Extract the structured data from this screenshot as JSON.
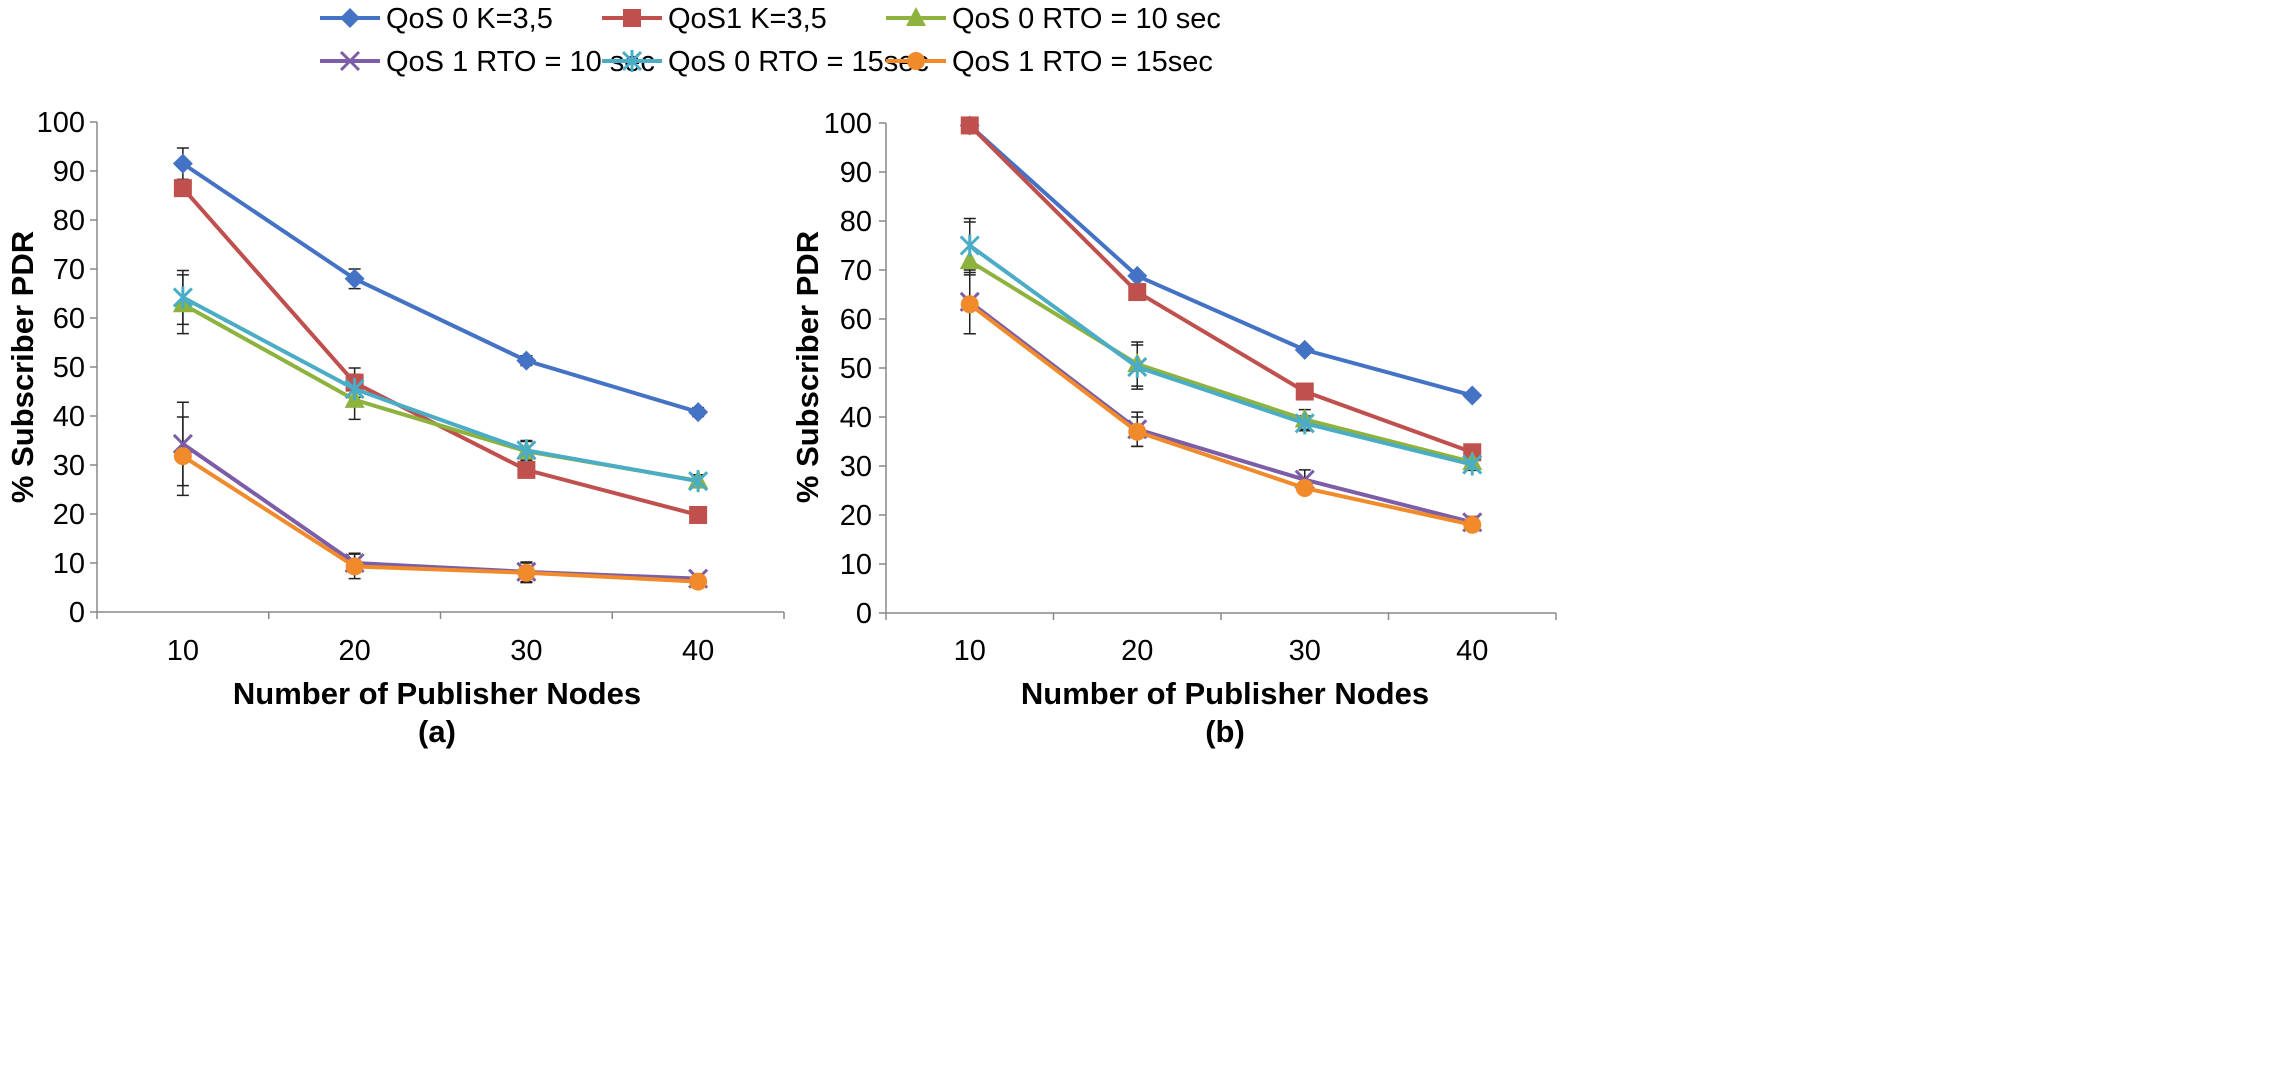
{
  "chart_data": [
    {
      "type": "line",
      "caption": "(a)",
      "xlabel": "Number of Publisher Nodes",
      "ylabel": "% Subscriber PDR",
      "categories": [
        "10",
        "20",
        "30",
        "40"
      ],
      "ylim": [
        0,
        100
      ],
      "yticks": [
        "0",
        "10",
        "20",
        "30",
        "40",
        "50",
        "60",
        "70",
        "80",
        "90",
        "100"
      ],
      "legend_position": "top",
      "series": [
        {
          "name": "QoS 0 K=3,5",
          "color": "#4472c4",
          "marker": "diamond",
          "values": [
            91.5,
            68,
            51.3,
            40.8
          ],
          "errors": [
            3.2,
            2.0,
            1.0,
            0.9
          ]
        },
        {
          "name": "QoS1 K=3,5",
          "color": "#c0504d",
          "marker": "square",
          "values": [
            86.5,
            46.8,
            29,
            19.8
          ],
          "errors": [
            0,
            3.0,
            0,
            0
          ]
        },
        {
          "name": "QoS 0 RTO = 10 sec",
          "color": "#8db33e",
          "marker": "triangle",
          "values": [
            62.8,
            43.3,
            32.8,
            26.8
          ],
          "errors": [
            6.0,
            4.0,
            2.0,
            1.2
          ]
        },
        {
          "name": "QoS 1 RTO = 10 sec",
          "color": "#7b5ea7",
          "marker": "x",
          "values": [
            34.3,
            10,
            8.2,
            6.8
          ],
          "errors": [
            8.5,
            2.0,
            2.0,
            1.0
          ]
        },
        {
          "name": "QoS 0 RTO = 15sec",
          "color": "#4bacc6",
          "marker": "star",
          "values": [
            64.2,
            45.5,
            33,
            26.7
          ],
          "errors": [
            5.5,
            3.0,
            2.0,
            1.2
          ]
        },
        {
          "name": "QoS 1 RTO = 15sec",
          "color": "#f08a2b",
          "marker": "circle",
          "values": [
            31.8,
            9.3,
            8,
            6.2
          ],
          "errors": [
            8.0,
            2.5,
            2.0,
            1.0
          ]
        }
      ]
    },
    {
      "type": "line",
      "caption": "(b)",
      "xlabel": "Number of Publisher Nodes",
      "ylabel": "% Subscriber PDR",
      "categories": [
        "10",
        "20",
        "30",
        "40"
      ],
      "ylim": [
        0,
        100
      ],
      "yticks": [
        "0",
        "10",
        "20",
        "30",
        "40",
        "50",
        "60",
        "70",
        "80",
        "90",
        "100"
      ],
      "legend_position": "top",
      "series": [
        {
          "name": "QoS 0 K=3,5",
          "color": "#4472c4",
          "marker": "diamond",
          "values": [
            99.5,
            68.8,
            53.7,
            44.4
          ],
          "errors": [
            0,
            0.5,
            0.5,
            0.5
          ]
        },
        {
          "name": "QoS1 K=3,5",
          "color": "#c0504d",
          "marker": "square",
          "values": [
            99.5,
            65.5,
            45.2,
            32.8
          ],
          "errors": [
            0,
            0,
            0,
            0
          ]
        },
        {
          "name": "QoS 0 RTO = 10 sec",
          "color": "#8db33e",
          "marker": "triangle",
          "values": [
            71.8,
            50.8,
            39.5,
            30.8
          ],
          "errors": [
            8.0,
            4.5,
            2.0,
            1.5
          ]
        },
        {
          "name": "QoS 1 RTO = 10 sec",
          "color": "#7b5ea7",
          "marker": "x",
          "values": [
            63.5,
            37.5,
            27.2,
            18.5
          ],
          "errors": [
            6.5,
            3.5,
            2.0,
            1.2
          ]
        },
        {
          "name": "QoS 0 RTO = 15sec",
          "color": "#4bacc6",
          "marker": "star",
          "values": [
            75,
            50.2,
            38.7,
            30.3
          ],
          "errors": [
            5.5,
            4.5,
            1.5,
            1.2
          ]
        },
        {
          "name": "QoS 1 RTO = 15sec",
          "color": "#f08a2b",
          "marker": "circle",
          "values": [
            63,
            37,
            25.5,
            18
          ],
          "errors": [
            6.0,
            3.0,
            1.2,
            1.2
          ]
        }
      ]
    }
  ]
}
